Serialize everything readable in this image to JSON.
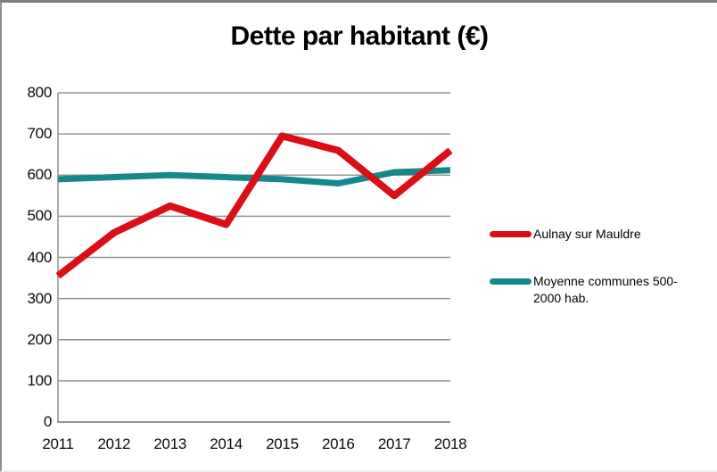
{
  "chart_data": {
    "type": "line",
    "title": "Dette par habitant (€)",
    "categories": [
      "2011",
      "2012",
      "2013",
      "2014",
      "2015",
      "2016",
      "2017",
      "2018"
    ],
    "series": [
      {
        "name": "Aulnay sur Mauldre",
        "color": "#DB0E15",
        "values": [
          355,
          460,
          525,
          480,
          695,
          660,
          550,
          660
        ]
      },
      {
        "name": "Moyenne communes 500-2000 hab.",
        "color": "#15888D",
        "values": [
          590,
          595,
          600,
          595,
          590,
          580,
          607,
          612
        ]
      }
    ],
    "ylim": [
      0,
      800
    ],
    "yticks": [
      0,
      100,
      200,
      300,
      400,
      500,
      600,
      700,
      800
    ],
    "xlabel": "",
    "ylabel": "",
    "grid": true,
    "gridline_color": "#949494",
    "axis_color": "#949494",
    "legend_position": "right",
    "text_color": "#000000",
    "background": "#ffffff"
  }
}
